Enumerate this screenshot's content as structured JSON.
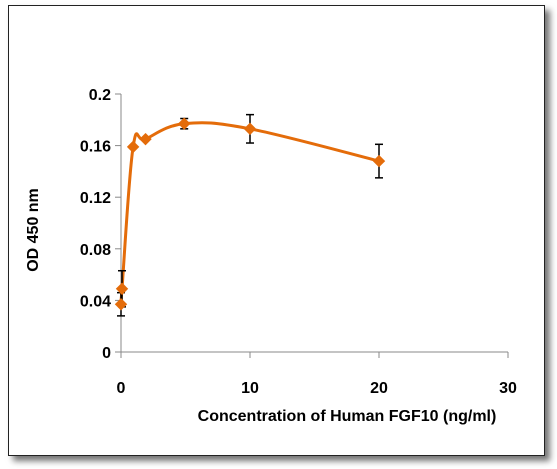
{
  "chart_data": {
    "type": "line",
    "title": "",
    "xlabel": "Concentration of Human FGF10  (ng/ml)",
    "ylabel": "OD  450 nm",
    "xlim": [
      0,
      30
    ],
    "ylim": [
      0,
      0.2
    ],
    "x_ticks": [
      "0",
      "10",
      "20",
      "30"
    ],
    "y_ticks": [
      "0",
      "0.04",
      "0.08",
      "0.12",
      "0.16",
      "0.2"
    ],
    "grid": false,
    "legend": "none",
    "series": [
      {
        "color": "#E46C0A",
        "marker": "diamond",
        "smooth": true,
        "x": [
          0.0,
          0.078,
          0.94,
          1.9,
          4.9,
          10.0,
          20.0
        ],
        "y": [
          0.037,
          0.049,
          0.159,
          0.165,
          0.177,
          0.173,
          0.148
        ],
        "error": [
          0.009,
          0.014,
          0.0,
          0.0,
          0.004,
          0.011,
          0.013
        ]
      }
    ]
  }
}
